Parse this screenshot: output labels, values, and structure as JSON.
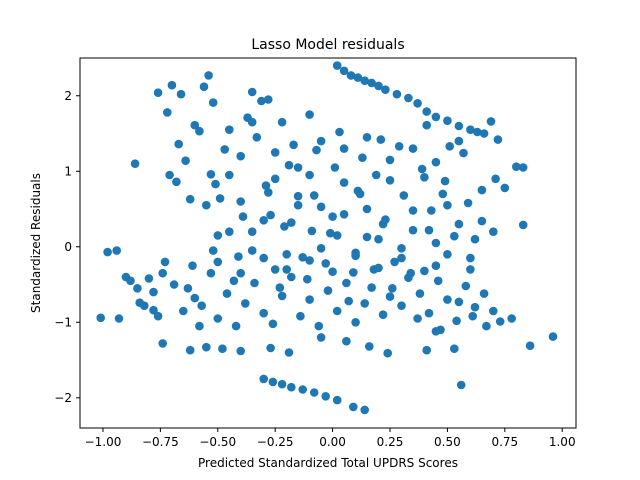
{
  "chart_data": {
    "type": "scatter",
    "title": "Lasso Model residuals",
    "xlabel": "Predicted Standardized Total UPDRS Scores",
    "ylabel": "Standardized Residuals",
    "xlim": [
      -1.1,
      1.06
    ],
    "ylim": [
      -2.4,
      2.5
    ],
    "xticks": [
      -1.0,
      -0.75,
      -0.5,
      -0.25,
      0.0,
      0.25,
      0.5,
      0.75,
      1.0
    ],
    "xtick_labels": [
      "−1.00",
      "−0.75",
      "−0.50",
      "−0.25",
      "0.00",
      "0.25",
      "0.50",
      "0.75",
      "1.00"
    ],
    "yticks": [
      -2,
      -1,
      0,
      1,
      2
    ],
    "ytick_labels": [
      "−2",
      "−1",
      "0",
      "1",
      "2"
    ],
    "grid": false,
    "marker_color": "#1f77b4",
    "points": [
      [
        -1.01,
        -0.94
      ],
      [
        -0.98,
        -0.07
      ],
      [
        -0.94,
        -0.05
      ],
      [
        -0.93,
        -0.95
      ],
      [
        -0.9,
        -0.4
      ],
      [
        -0.88,
        -0.45
      ],
      [
        -0.86,
        1.1
      ],
      [
        -0.85,
        -0.55
      ],
      [
        -0.84,
        -0.74
      ],
      [
        -0.82,
        -0.78
      ],
      [
        -0.8,
        -0.42
      ],
      [
        -0.78,
        -0.84
      ],
      [
        -0.76,
        -0.92
      ],
      [
        -0.74,
        -1.28
      ],
      [
        -0.76,
        2.04
      ],
      [
        -0.72,
        1.78
      ],
      [
        -0.7,
        2.14
      ],
      [
        -0.73,
        -0.2
      ],
      [
        -0.71,
        0.95
      ],
      [
        -0.66,
        2.02
      ],
      [
        -0.68,
        0.86
      ],
      [
        -0.67,
        1.36
      ],
      [
        -0.64,
        1.14
      ],
      [
        -0.62,
        0.63
      ],
      [
        -0.6,
        1.61
      ],
      [
        -0.58,
        1.53
      ],
      [
        -0.63,
        -0.55
      ],
      [
        -0.6,
        -0.68
      ],
      [
        -0.58,
        -1.05
      ],
      [
        -0.55,
        -1.33
      ],
      [
        -0.56,
        2.12
      ],
      [
        -0.54,
        2.27
      ],
      [
        -0.52,
        1.91
      ],
      [
        -0.53,
        0.96
      ],
      [
        -0.51,
        0.83
      ],
      [
        -0.49,
        0.64
      ],
      [
        -0.47,
        1.29
      ],
      [
        -0.45,
        0.2
      ],
      [
        -0.43,
        -0.45
      ],
      [
        -0.41,
        -0.13
      ],
      [
        -0.39,
        0.4
      ],
      [
        -0.37,
        1.71
      ],
      [
        -0.35,
        2.05
      ],
      [
        -0.33,
        1.45
      ],
      [
        -0.31,
        1.93
      ],
      [
        -0.29,
        0.81
      ],
      [
        -0.27,
        0.42
      ],
      [
        -0.25,
        -0.3
      ],
      [
        -0.23,
        -0.54
      ],
      [
        -0.21,
        0.27
      ],
      [
        -0.19,
        1.08
      ],
      [
        -0.17,
        1.35
      ],
      [
        -0.15,
        0.67
      ],
      [
        -0.13,
        -0.14
      ],
      [
        -0.11,
        -0.43
      ],
      [
        -0.09,
        0.21
      ],
      [
        -0.07,
        1.28
      ],
      [
        -0.05,
        0.53
      ],
      [
        -0.03,
        -0.22
      ],
      [
        -0.01,
        0.18
      ],
      [
        0.01,
        1.05
      ],
      [
        0.03,
        1.52
      ],
      [
        0.05,
        0.43
      ],
      [
        0.07,
        -0.72
      ],
      [
        0.09,
        -0.34
      ],
      [
        0.11,
        0.74
      ],
      [
        0.13,
        1.18
      ],
      [
        0.15,
        0.13
      ],
      [
        0.17,
        -0.54
      ],
      [
        0.19,
        0.95
      ],
      [
        0.21,
        1.42
      ],
      [
        0.23,
        0.36
      ],
      [
        0.25,
        -0.66
      ],
      [
        0.27,
        -0.2
      ],
      [
        0.29,
        1.33
      ],
      [
        0.31,
        0.68
      ],
      [
        0.33,
        -0.41
      ],
      [
        0.35,
        0.22
      ],
      [
        0.37,
        -0.95
      ],
      [
        0.39,
        1.03
      ],
      [
        0.41,
        1.61
      ],
      [
        0.43,
        0.48
      ],
      [
        0.45,
        -0.25
      ],
      [
        0.47,
        -1.1
      ],
      [
        0.49,
        0.87
      ],
      [
        0.51,
        1.33
      ],
      [
        0.53,
        0.14
      ],
      [
        0.55,
        -0.73
      ],
      [
        0.57,
        1.24
      ],
      [
        0.59,
        0.58
      ],
      [
        0.61,
        -0.92
      ],
      [
        0.63,
        1.52
      ],
      [
        0.65,
        0.34
      ],
      [
        0.67,
        -1.05
      ],
      [
        0.69,
        1.66
      ],
      [
        0.71,
        0.9
      ],
      [
        0.73,
        -0.99
      ],
      [
        0.75,
        0.78
      ],
      [
        0.78,
        -0.95
      ],
      [
        0.8,
        1.06
      ],
      [
        0.83,
        0.29
      ],
      [
        0.83,
        1.05
      ],
      [
        0.86,
        -1.31
      ],
      [
        0.96,
        -1.19
      ],
      [
        0.02,
        2.4
      ],
      [
        0.05,
        2.33
      ],
      [
        0.08,
        2.27
      ],
      [
        0.11,
        2.24
      ],
      [
        0.14,
        2.2
      ],
      [
        0.17,
        2.17
      ],
      [
        0.2,
        2.13
      ],
      [
        0.23,
        2.08
      ],
      [
        0.28,
        2.02
      ],
      [
        0.33,
        1.97
      ],
      [
        0.37,
        1.9
      ],
      [
        0.41,
        1.79
      ],
      [
        0.45,
        1.72
      ],
      [
        0.5,
        1.67
      ],
      [
        0.55,
        1.6
      ],
      [
        0.6,
        1.55
      ],
      [
        0.66,
        1.5
      ],
      [
        0.72,
        1.42
      ],
      [
        -0.3,
        -1.75
      ],
      [
        -0.26,
        -1.79
      ],
      [
        -0.22,
        -1.82
      ],
      [
        -0.18,
        -1.86
      ],
      [
        -0.13,
        -1.89
      ],
      [
        -0.08,
        -1.93
      ],
      [
        -0.03,
        -1.98
      ],
      [
        0.02,
        -2.03
      ],
      [
        0.09,
        -2.12
      ],
      [
        0.14,
        -2.16
      ],
      [
        -0.62,
        -1.37
      ],
      [
        -0.48,
        -1.35
      ],
      [
        -0.4,
        -1.38
      ],
      [
        -0.27,
        -1.34
      ],
      [
        -0.19,
        -1.4
      ],
      [
        -0.05,
        -1.2
      ],
      [
        0.06,
        -1.25
      ],
      [
        0.16,
        -1.32
      ],
      [
        0.24,
        -1.41
      ],
      [
        0.41,
        -1.37
      ],
      [
        0.56,
        -1.83
      ],
      [
        0.53,
        -1.35
      ],
      [
        0.45,
        -1.12
      ],
      [
        -0.78,
        -0.6
      ],
      [
        -0.74,
        -0.35
      ],
      [
        -0.69,
        -0.5
      ],
      [
        -0.65,
        -0.85
      ],
      [
        -0.61,
        -0.25
      ],
      [
        -0.57,
        -0.78
      ],
      [
        -0.53,
        -0.35
      ],
      [
        -0.5,
        -0.95
      ],
      [
        -0.46,
        -0.62
      ],
      [
        -0.42,
        -1.05
      ],
      [
        -0.38,
        -0.75
      ],
      [
        -0.34,
        -0.48
      ],
      [
        -0.3,
        -0.88
      ],
      [
        -0.26,
        -1.02
      ],
      [
        -0.22,
        -0.65
      ],
      [
        -0.18,
        -0.4
      ],
      [
        -0.14,
        -0.92
      ],
      [
        -0.1,
        -0.7
      ],
      [
        -0.06,
        -1.05
      ],
      [
        -0.02,
        -0.58
      ],
      [
        0.02,
        -0.85
      ],
      [
        0.06,
        -0.48
      ],
      [
        0.1,
        -1.0
      ],
      [
        0.14,
        -0.75
      ],
      [
        0.18,
        -0.3
      ],
      [
        0.22,
        -0.9
      ],
      [
        0.26,
        -0.55
      ],
      [
        0.3,
        -0.78
      ],
      [
        0.34,
        -0.35
      ],
      [
        0.38,
        -0.62
      ],
      [
        0.42,
        -0.88
      ],
      [
        0.46,
        -0.45
      ],
      [
        0.5,
        -0.7
      ],
      [
        0.54,
        -0.98
      ],
      [
        0.58,
        -0.52
      ],
      [
        0.62,
        -0.8
      ],
      [
        0.66,
        -0.62
      ],
      [
        0.7,
        -0.85
      ],
      [
        -0.55,
        0.55
      ],
      [
        -0.5,
        0.15
      ],
      [
        -0.45,
        0.95
      ],
      [
        -0.4,
        0.6
      ],
      [
        -0.35,
        -0.05
      ],
      [
        -0.3,
        0.35
      ],
      [
        -0.25,
        0.9
      ],
      [
        -0.2,
        -0.1
      ],
      [
        -0.15,
        0.55
      ],
      [
        -0.1,
        0.95
      ],
      [
        -0.05,
        -0.02
      ],
      [
        0.0,
        0.4
      ],
      [
        0.05,
        0.85
      ],
      [
        0.1,
        -0.08
      ],
      [
        0.15,
        0.5
      ],
      [
        0.2,
        0.1
      ],
      [
        0.25,
        0.88
      ],
      [
        0.3,
        -0.02
      ],
      [
        0.35,
        0.48
      ],
      [
        0.4,
        0.92
      ],
      [
        0.45,
        0.05
      ],
      [
        0.5,
        0.55
      ],
      [
        0.55,
        0.3
      ],
      [
        0.6,
        -0.15
      ],
      [
        0.65,
        0.75
      ],
      [
        0.7,
        0.2
      ],
      [
        -0.45,
        1.55
      ],
      [
        -0.4,
        1.2
      ],
      [
        -0.35,
        1.65
      ],
      [
        -0.25,
        1.25
      ],
      [
        -0.15,
        1.05
      ],
      [
        -0.05,
        1.4
      ],
      [
        0.05,
        1.3
      ],
      [
        0.15,
        1.45
      ],
      [
        0.25,
        1.15
      ],
      [
        0.35,
        1.3
      ],
      [
        0.45,
        1.12
      ],
      [
        0.55,
        1.4
      ],
      [
        -0.28,
        1.95
      ],
      [
        -0.22,
        1.65
      ],
      [
        -0.1,
        1.75
      ],
      [
        -0.5,
        -0.2
      ],
      [
        -0.4,
        -0.35
      ],
      [
        -0.3,
        -0.15
      ],
      [
        -0.2,
        -0.3
      ],
      [
        -0.1,
        -0.18
      ],
      [
        0.0,
        -0.33
      ],
      [
        0.1,
        -0.12
      ],
      [
        0.2,
        -0.28
      ],
      [
        0.3,
        -0.15
      ],
      [
        0.4,
        -0.32
      ],
      [
        0.5,
        -0.1
      ],
      [
        0.6,
        -0.3
      ],
      [
        -0.52,
        -0.05
      ],
      [
        -0.35,
        0.2
      ],
      [
        -0.18,
        0.32
      ],
      [
        0.02,
        0.15
      ],
      [
        0.22,
        0.3
      ],
      [
        0.42,
        0.22
      ],
      [
        0.62,
        0.1
      ],
      [
        0.48,
        0.7
      ],
      [
        0.12,
        0.7
      ],
      [
        -0.08,
        0.68
      ],
      [
        -0.28,
        0.72
      ]
    ]
  }
}
